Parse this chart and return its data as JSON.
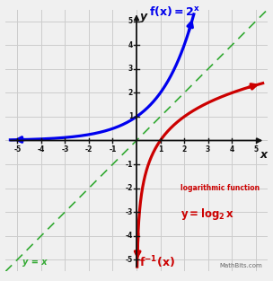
{
  "xlim": [
    -5.5,
    5.5
  ],
  "ylim": [
    -5.5,
    5.5
  ],
  "bg_color": "#f0f0f0",
  "grid_color": "#cccccc",
  "axis_color": "#111111",
  "exp_color": "#0000ee",
  "log_color": "#cc0000",
  "diag_color": "#33aa33",
  "label_diag": "y = x",
  "label_x_axis": "x",
  "label_y_axis": "y",
  "watermark": "MathBits.com",
  "tick_vals": [
    -5,
    -4,
    -3,
    -2,
    -1,
    1,
    2,
    3,
    4,
    5
  ]
}
